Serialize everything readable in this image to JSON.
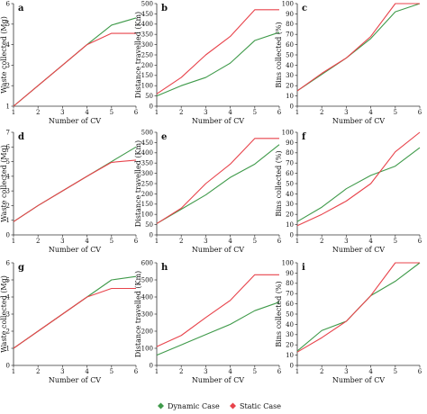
{
  "colors": {
    "dynamic": "#3f9a4a",
    "static": "#e8434b",
    "axis": "#333333"
  },
  "legend": [
    {
      "key": "dynamic",
      "label": "Dynamic Case"
    },
    {
      "key": "static",
      "label": "Static Case"
    }
  ],
  "chart_data": [
    {
      "type": "line",
      "panel": "a",
      "xlabel": "Number of CV",
      "ylabel": "Waste collected (Mg)",
      "xlim": [
        1,
        6
      ],
      "ylim": [
        1,
        6
      ],
      "xticks": [
        1,
        2,
        3,
        4,
        5,
        6
      ],
      "yticks": [
        1,
        2,
        3,
        4,
        5,
        6
      ],
      "x": [
        1,
        2,
        3,
        4,
        5,
        6
      ],
      "series": [
        {
          "key": "dynamic",
          "name": "Dynamic Case",
          "values": [
            1.0,
            2.0,
            3.0,
            4.0,
            4.95,
            5.3
          ]
        },
        {
          "key": "static",
          "name": "Static Case",
          "values": [
            1.0,
            2.0,
            3.0,
            4.0,
            4.55,
            4.55
          ]
        }
      ]
    },
    {
      "type": "line",
      "panel": "b",
      "xlabel": "Number of CV",
      "ylabel": "Distance travelled (Km)",
      "xlim": [
        1,
        6
      ],
      "ylim": [
        0,
        500
      ],
      "xticks": [
        1,
        2,
        3,
        4,
        5,
        6
      ],
      "yticks": [
        0,
        50,
        100,
        150,
        200,
        250,
        300,
        350,
        400,
        450,
        500
      ],
      "x": [
        1,
        2,
        3,
        4,
        5,
        6
      ],
      "series": [
        {
          "key": "dynamic",
          "name": "Dynamic Case",
          "values": [
            50,
            100,
            140,
            210,
            320,
            360
          ]
        },
        {
          "key": "static",
          "name": "Static Case",
          "values": [
            60,
            140,
            250,
            340,
            470,
            470
          ]
        }
      ]
    },
    {
      "type": "line",
      "panel": "c",
      "xlabel": "Number of CV",
      "ylabel": "Bins collected (%)",
      "xlim": [
        1,
        6
      ],
      "ylim": [
        0,
        100
      ],
      "xticks": [
        1,
        2,
        3,
        4,
        5,
        6
      ],
      "yticks": [
        0,
        10,
        20,
        30,
        40,
        50,
        60,
        70,
        80,
        90,
        100
      ],
      "x": [
        1,
        2,
        3,
        4,
        5,
        6
      ],
      "series": [
        {
          "key": "dynamic",
          "name": "Dynamic Case",
          "values": [
            15,
            31,
            47,
            66,
            92,
            100
          ]
        },
        {
          "key": "static",
          "name": "Static Case",
          "values": [
            15,
            32,
            47,
            68,
            100,
            100
          ]
        }
      ]
    },
    {
      "type": "line",
      "panel": "d",
      "xlabel": "Number of CV",
      "ylabel": "Waste collected (Mg)",
      "xlim": [
        1,
        6
      ],
      "ylim": [
        0,
        7
      ],
      "xticks": [
        1,
        2,
        3,
        4,
        5,
        6
      ],
      "yticks": [
        0,
        1,
        2,
        3,
        4,
        5,
        6,
        7
      ],
      "x": [
        1,
        2,
        3,
        4,
        5,
        6
      ],
      "series": [
        {
          "key": "dynamic",
          "name": "Dynamic Case",
          "values": [
            0.9,
            2.0,
            3.0,
            4.0,
            5.0,
            6.0
          ]
        },
        {
          "key": "static",
          "name": "Static Case",
          "values": [
            0.9,
            2.0,
            3.0,
            4.0,
            4.95,
            5.1
          ]
        }
      ]
    },
    {
      "type": "line",
      "panel": "e",
      "xlabel": "Number of CV",
      "ylabel": "Distance travelled (Km)",
      "xlim": [
        1,
        6
      ],
      "ylim": [
        0,
        500
      ],
      "xticks": [
        1,
        2,
        3,
        4,
        5,
        6
      ],
      "yticks": [
        0,
        50,
        100,
        150,
        200,
        250,
        300,
        350,
        400,
        450,
        500
      ],
      "x": [
        1,
        2,
        3,
        4,
        5,
        6
      ],
      "series": [
        {
          "key": "dynamic",
          "name": "Dynamic Case",
          "values": [
            55,
            125,
            195,
            280,
            345,
            440
          ]
        },
        {
          "key": "static",
          "name": "Static Case",
          "values": [
            55,
            130,
            250,
            345,
            470,
            470
          ]
        }
      ]
    },
    {
      "type": "line",
      "panel": "f",
      "xlabel": "Number of CV",
      "ylabel": "Bins collected (%)",
      "xlim": [
        1,
        6
      ],
      "ylim": [
        0,
        100
      ],
      "xticks": [
        1,
        2,
        3,
        4,
        5,
        6
      ],
      "yticks": [
        0,
        10,
        20,
        30,
        40,
        50,
        60,
        70,
        80,
        90,
        100
      ],
      "x": [
        1,
        2,
        3,
        4,
        5,
        6
      ],
      "series": [
        {
          "key": "dynamic",
          "name": "Dynamic Case",
          "values": [
            13,
            27,
            45,
            58,
            67,
            85
          ]
        },
        {
          "key": "static",
          "name": "Static Case",
          "values": [
            9,
            20,
            33,
            50,
            81,
            100
          ]
        }
      ]
    },
    {
      "type": "line",
      "panel": "g",
      "xlabel": "Number of CV",
      "ylabel": "Waste collected (Mg)",
      "xlim": [
        1,
        6
      ],
      "ylim": [
        0,
        6
      ],
      "xticks": [
        1,
        2,
        3,
        4,
        5,
        6
      ],
      "yticks": [
        0,
        1,
        2,
        3,
        4,
        5,
        6
      ],
      "x": [
        1,
        2,
        3,
        4,
        5,
        6
      ],
      "series": [
        {
          "key": "dynamic",
          "name": "Dynamic Case",
          "values": [
            1.0,
            2.0,
            3.0,
            4.0,
            5.0,
            5.2
          ]
        },
        {
          "key": "static",
          "name": "Static Case",
          "values": [
            1.0,
            2.0,
            3.0,
            4.0,
            4.5,
            4.5
          ]
        }
      ]
    },
    {
      "type": "line",
      "panel": "h",
      "xlabel": "Number of CV",
      "ylabel": "Distance travelled (Km)",
      "xlim": [
        1,
        6
      ],
      "ylim": [
        0,
        600
      ],
      "xticks": [
        1,
        2,
        3,
        4,
        5,
        6
      ],
      "yticks": [
        0,
        100,
        200,
        300,
        400,
        500,
        600
      ],
      "x": [
        1,
        2,
        3,
        4,
        5,
        6
      ],
      "series": [
        {
          "key": "dynamic",
          "name": "Dynamic Case",
          "values": [
            60,
            120,
            180,
            240,
            320,
            370
          ]
        },
        {
          "key": "static",
          "name": "Static Case",
          "values": [
            110,
            175,
            280,
            380,
            530,
            530
          ]
        }
      ]
    },
    {
      "type": "line",
      "panel": "i",
      "xlabel": "Number of CV",
      "ylabel": "Bins collected (%)",
      "xlim": [
        1,
        6
      ],
      "ylim": [
        0,
        100
      ],
      "xticks": [
        1,
        2,
        3,
        4,
        5,
        6
      ],
      "yticks": [
        0,
        10,
        20,
        30,
        40,
        50,
        60,
        70,
        80,
        90,
        100
      ],
      "x": [
        1,
        2,
        3,
        4,
        5,
        6
      ],
      "series": [
        {
          "key": "dynamic",
          "name": "Dynamic Case",
          "values": [
            14,
            34,
            43,
            68,
            82,
            100
          ]
        },
        {
          "key": "static",
          "name": "Static Case",
          "values": [
            13,
            27,
            43,
            68,
            100,
            100
          ]
        }
      ]
    }
  ]
}
